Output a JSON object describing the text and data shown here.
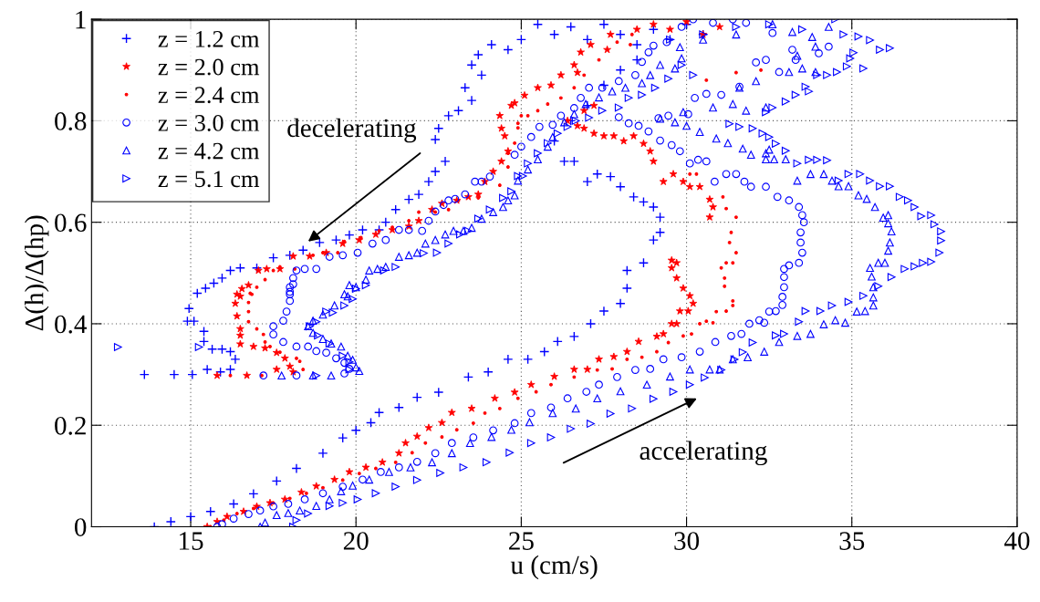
{
  "chart_data": {
    "type": "scatter",
    "xlabel": "u (cm/s)",
    "ylabel": "Δ(h)/Δ(hp)",
    "xlim": [
      12,
      40
    ],
    "ylim": [
      0,
      1
    ],
    "xticks": [
      15,
      20,
      25,
      30,
      35,
      40
    ],
    "yticks": [
      0,
      0.2,
      0.4,
      0.6,
      0.8,
      1
    ],
    "grid": true,
    "legend": "top left",
    "annotations": [
      "decelerating",
      "accelerating"
    ],
    "series": [
      {
        "name": "z = 1.2 cm",
        "color": "#0000ff",
        "marker": "plus",
        "x": [
          13.9,
          14.4,
          15.0,
          15.6,
          16.3,
          16.9,
          17.6,
          18.2,
          19.0,
          19.6,
          20.0,
          20.45,
          20.7,
          21.3,
          21.85,
          22.5,
          23.4,
          24.0,
          24.6,
          25.2,
          25.7,
          26.1,
          26.6,
          27.1,
          27.5,
          28.0,
          28.2,
          28.2,
          28.7,
          29.2,
          29.0,
          29.2,
          29.0,
          28.7,
          28.4,
          28.0,
          27.7,
          27.3,
          27.0,
          26.3,
          26.6,
          26.0,
          26.5,
          27.0,
          27.5,
          28.0,
          28.5,
          26.0,
          26.5,
          27.0,
          27.5,
          28.0,
          28.5,
          29.0,
          29.5,
          30.0,
          30.5,
          25.5,
          25.0,
          24.6,
          24.1,
          23.7,
          23.5,
          23.8,
          23.3,
          23.5,
          23.1,
          22.8,
          22.5,
          22.4,
          22.7,
          22.4,
          22.2,
          21.9,
          21.6,
          21.2,
          20.9,
          20.7,
          20.2,
          19.8,
          19.4,
          18.9,
          18.4,
          18.0,
          17.5,
          17.0,
          16.5,
          16.2,
          15.95,
          15.7,
          15.45,
          15.2,
          14.95,
          14.9,
          15.1,
          15.4,
          15.4,
          15.65,
          15.95,
          16.2,
          16.35,
          16.2,
          15.9,
          15.5,
          15.05,
          14.5,
          13.6
        ],
        "values": [
          0,
          0.01,
          0.02,
          0.03,
          0.045,
          0.065,
          0.09,
          0.115,
          0.145,
          0.175,
          0.19,
          0.205,
          0.225,
          0.235,
          0.255,
          0.265,
          0.295,
          0.305,
          0.33,
          0.33,
          0.345,
          0.365,
          0.375,
          0.4,
          0.425,
          0.44,
          0.47,
          0.505,
          0.52,
          0.61,
          0.565,
          0.58,
          0.63,
          0.64,
          0.65,
          0.67,
          0.69,
          0.695,
          0.68,
          0.72,
          0.72,
          0.76,
          0.8,
          0.83,
          0.87,
          0.9,
          0.92,
          0.97,
          0.985,
          0.96,
          0.99,
          0.97,
          0.95,
          0.98,
          0.96,
          0.99,
          0.97,
          0.99,
          0.96,
          0.94,
          0.95,
          0.93,
          0.91,
          0.89,
          0.865,
          0.84,
          0.82,
          0.81,
          0.785,
          0.763,
          0.72,
          0.7,
          0.68,
          0.655,
          0.645,
          0.625,
          0.6,
          0.585,
          0.585,
          0.575,
          0.565,
          0.56,
          0.545,
          0.535,
          0.53,
          0.51,
          0.51,
          0.505,
          0.49,
          0.48,
          0.47,
          0.46,
          0.43,
          0.405,
          0.405,
          0.385,
          0.365,
          0.35,
          0.35,
          0.345,
          0.33,
          0.31,
          0.305,
          0.31,
          0.3,
          0.3,
          0.3
        ]
      },
      {
        "name": "z = 2.0 cm",
        "color": "#ff0000",
        "marker": "star",
        "x": [
          15.5,
          15.8,
          16.1,
          16.6,
          17.0,
          17.4,
          17.85,
          18.35,
          18.8,
          19.35,
          19.8,
          20.3,
          20.8,
          21.3,
          21.5,
          21.85,
          22.2,
          22.6,
          22.9,
          23.5,
          24.2,
          24.8,
          25.3,
          26.0,
          26.6,
          27.0,
          27.35,
          27.8,
          28.2,
          28.55,
          29.1,
          29.3,
          29.55,
          29.7,
          29.8,
          30.05,
          30.2,
          30.1,
          29.9,
          29.7,
          29.55,
          29.7,
          29.55,
          30.7,
          30.8,
          30.7,
          30.4,
          30.1,
          29.9,
          29.6,
          29.3,
          29.0,
          28.9,
          28.7,
          28.4,
          28.1,
          27.8,
          27.5,
          27.2,
          26.9,
          26.7,
          26.4,
          26.9,
          27.2,
          29.0,
          29.5,
          30.0,
          30.5,
          31.0,
          28.5,
          27.7,
          27.6,
          27.1,
          26.8,
          26.6,
          26.7,
          26.2,
          25.9,
          25.5,
          25.1,
          24.8,
          24.7,
          24.35,
          24.4,
          24.5,
          24.6,
          24.4,
          24.15,
          23.9,
          23.7,
          23.4,
          23.05,
          22.6,
          22.3,
          21.9,
          21.6,
          21.1,
          20.6,
          20.1,
          19.6,
          19.1,
          18.6,
          18.1,
          17.7,
          17.3,
          17.05,
          16.75,
          16.55,
          16.5,
          16.4,
          16.35,
          16.4,
          16.5,
          16.5,
          16.5,
          16.9,
          17.25,
          17.6,
          17.85,
          18.0,
          18.1,
          17.6,
          16.7,
          15.8
        ],
        "values": [
          0,
          0.01,
          0.02,
          0.03,
          0.04,
          0.047,
          0.054,
          0.068,
          0.08,
          0.093,
          0.108,
          0.117,
          0.127,
          0.145,
          0.165,
          0.178,
          0.195,
          0.205,
          0.225,
          0.233,
          0.253,
          0.265,
          0.28,
          0.296,
          0.31,
          0.31,
          0.33,
          0.335,
          0.345,
          0.365,
          0.375,
          0.38,
          0.4,
          0.4,
          0.425,
          0.425,
          0.44,
          0.455,
          0.47,
          0.49,
          0.51,
          0.52,
          0.525,
          0.61,
          0.63,
          0.645,
          0.67,
          0.67,
          0.68,
          0.695,
          0.68,
          0.72,
          0.74,
          0.755,
          0.77,
          0.76,
          0.77,
          0.77,
          0.775,
          0.785,
          0.79,
          0.8,
          0.82,
          0.83,
          0.99,
          0.98,
          0.995,
          0.97,
          0.985,
          0.98,
          0.97,
          0.94,
          0.95,
          0.935,
          0.91,
          0.895,
          0.89,
          0.87,
          0.865,
          0.85,
          0.835,
          0.83,
          0.81,
          0.785,
          0.77,
          0.74,
          0.72,
          0.7,
          0.68,
          0.655,
          0.65,
          0.643,
          0.637,
          0.625,
          0.603,
          0.592,
          0.585,
          0.576,
          0.565,
          0.558,
          0.54,
          0.533,
          0.533,
          0.508,
          0.508,
          0.505,
          0.476,
          0.469,
          0.454,
          0.458,
          0.44,
          0.415,
          0.39,
          0.377,
          0.36,
          0.355,
          0.352,
          0.343,
          0.332,
          0.316,
          0.305,
          0.31,
          0.298,
          0.298
        ]
      },
      {
        "name": "z = 2.4 cm",
        "color": "#ff0000",
        "marker": "point",
        "x": [
          15.6,
          16.0,
          16.4,
          16.9,
          17.5,
          18.0,
          18.5,
          19.0,
          19.6,
          20.1,
          20.6,
          21.2,
          21.7,
          22.1,
          22.6,
          23.05,
          23.55,
          23.9,
          24.35,
          24.9,
          25.45,
          25.9,
          26.6,
          27.3,
          27.75,
          28.2,
          28.65,
          29.1,
          29.45,
          29.9,
          30.15,
          30.4,
          30.6,
          30.8,
          30.9,
          31.2,
          31.4,
          31.4,
          31.15,
          31.15,
          31.05,
          31.2,
          31.4,
          31.5,
          31.3,
          31.35,
          31.5,
          31.2,
          31.1,
          30.3,
          30.1,
          31.5,
          32.25,
          30.6,
          28.3,
          28.35,
          27.9,
          27.35,
          26.9,
          26.6,
          26.2,
          25.8,
          25.5,
          25.2,
          24.9,
          25.0,
          24.9,
          24.8,
          24.6,
          24.6,
          24.35,
          23.7,
          23.1,
          22.8,
          22.4,
          21.9,
          21.6,
          21.1,
          20.7,
          20.15,
          19.65,
          19.45,
          19.0,
          18.7,
          18.15,
          17.7,
          17.5,
          17.25,
          17.0,
          16.85,
          16.8,
          16.75,
          16.75,
          16.75,
          17.0,
          17.2,
          17.25,
          17.4,
          17.7,
          18.2,
          18.3,
          18.4,
          17.15,
          16.2
        ],
        "values": [
          0,
          0.013,
          0.026,
          0.036,
          0.047,
          0.056,
          0.066,
          0.077,
          0.092,
          0.105,
          0.115,
          0.127,
          0.146,
          0.165,
          0.177,
          0.191,
          0.204,
          0.224,
          0.233,
          0.253,
          0.266,
          0.28,
          0.295,
          0.309,
          0.311,
          0.33,
          0.334,
          0.345,
          0.363,
          0.376,
          0.38,
          0.4,
          0.405,
          0.402,
          0.424,
          0.425,
          0.436,
          0.445,
          0.474,
          0.49,
          0.51,
          0.52,
          0.52,
          0.54,
          0.56,
          0.58,
          0.61,
          0.627,
          0.65,
          0.695,
          0.695,
          0.895,
          0.9,
          0.88,
          0.95,
          0.97,
          0.955,
          0.92,
          0.89,
          0.865,
          0.845,
          0.833,
          0.82,
          0.81,
          0.795,
          0.81,
          0.786,
          0.756,
          0.736,
          0.709,
          0.673,
          0.648,
          0.643,
          0.625,
          0.62,
          0.62,
          0.603,
          0.59,
          0.583,
          0.57,
          0.562,
          0.54,
          0.54,
          0.535,
          0.508,
          0.512,
          0.505,
          0.487,
          0.472,
          0.458,
          0.46,
          0.442,
          0.424,
          0.404,
          0.39,
          0.379,
          0.364,
          0.355,
          0.344,
          0.332,
          0.326,
          0.31,
          0.298,
          0.298
        ]
      },
      {
        "name": "z = 3.0 cm",
        "color": "#0000ff",
        "marker": "circle",
        "x": [
          15.8,
          15.95,
          16.3,
          16.75,
          17.1,
          17.5,
          17.95,
          18.45,
          19.0,
          19.6,
          20.2,
          20.75,
          21.3,
          21.85,
          22.4,
          22.9,
          23.55,
          24.15,
          24.8,
          25.3,
          25.9,
          26.4,
          26.97,
          27.35,
          27.9,
          28.45,
          28.9,
          29.3,
          29.85,
          30.4,
          30.87,
          31.35,
          31.66,
          31.9,
          32.2,
          32.35,
          32.5,
          32.7,
          32.9,
          32.9,
          32.95,
          32.95,
          32.95,
          33.1,
          33.4,
          33.5,
          33.45,
          33.45,
          33.55,
          33.5,
          33.4,
          33.1,
          32.75,
          32.4,
          31.95,
          31.75,
          31.5,
          31.2,
          30.85,
          30.6,
          30.35,
          30.1,
          29.8,
          29.55,
          29.2,
          28.85,
          28.55,
          28.25,
          27.95,
          29.15,
          29.45,
          30.05,
          30.25,
          30.6,
          31.05,
          31.6,
          32.1,
          32.4,
          32.8,
          33.3,
          34.0,
          34.3,
          29.85,
          30.2,
          30.8,
          31.4,
          31.8,
          32.6,
          33.2,
          29.4,
          29.0,
          28.85,
          28.65,
          28.45,
          27.95,
          27.45,
          27.05,
          26.8,
          26.6,
          26.2,
          25.95,
          25.55,
          25.3,
          25.0,
          24.8,
          24.05,
          23.8,
          23.6,
          23.3,
          23.0,
          22.8,
          22.65,
          22.4,
          22.2,
          22.0,
          21.6,
          21.3,
          20.9,
          20.5,
          20.05,
          19.6,
          19.2,
          18.8,
          18.45,
          18.2,
          18.1,
          18.0,
          18.0,
          18.1,
          18.0,
          18.0,
          17.9,
          17.8,
          17.5,
          17.5,
          17.8,
          18.2,
          18.55,
          18.8,
          19.1,
          19.4,
          19.65,
          19.8,
          19.65,
          18.2,
          17.2
        ],
        "values": [
          0,
          0.005,
          0.016,
          0.025,
          0.032,
          0.04,
          0.045,
          0.054,
          0.066,
          0.079,
          0.093,
          0.108,
          0.117,
          0.128,
          0.145,
          0.165,
          0.176,
          0.19,
          0.204,
          0.224,
          0.235,
          0.253,
          0.266,
          0.28,
          0.295,
          0.309,
          0.311,
          0.33,
          0.334,
          0.345,
          0.364,
          0.376,
          0.38,
          0.4,
          0.407,
          0.402,
          0.424,
          0.425,
          0.437,
          0.453,
          0.472,
          0.492,
          0.508,
          0.515,
          0.52,
          0.54,
          0.56,
          0.58,
          0.6,
          0.614,
          0.63,
          0.643,
          0.65,
          0.67,
          0.67,
          0.68,
          0.695,
          0.695,
          0.68,
          0.72,
          0.723,
          0.716,
          0.74,
          0.752,
          0.761,
          0.779,
          0.79,
          0.795,
          0.807,
          0.805,
          0.81,
          0.813,
          0.845,
          0.853,
          0.851,
          0.867,
          0.915,
          0.92,
          0.896,
          0.92,
          0.933,
          0.946,
          0.985,
          1.0,
          0.993,
          1.0,
          0.993,
          0.973,
          0.94,
          0.955,
          0.948,
          0.935,
          0.916,
          0.89,
          0.878,
          0.865,
          0.865,
          0.845,
          0.825,
          0.81,
          0.792,
          0.788,
          0.768,
          0.749,
          0.733,
          0.69,
          0.68,
          0.68,
          0.655,
          0.646,
          0.643,
          0.634,
          0.621,
          0.603,
          0.583,
          0.585,
          0.585,
          0.565,
          0.558,
          0.54,
          0.535,
          0.532,
          0.508,
          0.508,
          0.505,
          0.49,
          0.472,
          0.458,
          0.478,
          0.463,
          0.445,
          0.424,
          0.406,
          0.395,
          0.379,
          0.364,
          0.355,
          0.355,
          0.346,
          0.343,
          0.332,
          0.323,
          0.311,
          0.302,
          0.298,
          0.298
        ]
      },
      {
        "name": "z = 4.2 cm",
        "color": "#0000ff",
        "marker": "triangle",
        "x": [
          17.1,
          17.25,
          17.6,
          17.95,
          18.3,
          18.8,
          19.2,
          19.55,
          19.9,
          20.4,
          21.0,
          21.65,
          22.3,
          22.9,
          23.45,
          24.1,
          24.7,
          25.25,
          25.95,
          26.65,
          27.3,
          28.0,
          28.8,
          29.5,
          30.1,
          30.7,
          31.0,
          31.4,
          31.85,
          32.35,
          32.8,
          33.35,
          33.75,
          34.15,
          34.5,
          34.8,
          35.15,
          35.4,
          35.65,
          35.65,
          35.65,
          35.6,
          35.55,
          35.8,
          36.0,
          36.1,
          36.15,
          36.2,
          36.1,
          36.1,
          35.95,
          35.7,
          35.45,
          35.2,
          34.9,
          34.6,
          34.4,
          34.15,
          33.75,
          33.35,
          33.0,
          32.65,
          32.4,
          32.4,
          32.5,
          31.95,
          31.7,
          31.25,
          30.9,
          30.4,
          30.0,
          29.65,
          29.2,
          29.9,
          30.8,
          31.4,
          31.8,
          32.4,
          31.6,
          32.1,
          33.1,
          33.5,
          33.9,
          33.35,
          33.9,
          32.6,
          33.2,
          33.8,
          34.3,
          31.5,
          30.5,
          29.8,
          29.85,
          29.65,
          29.2,
          28.9,
          28.65,
          28.15,
          27.75,
          27.35,
          26.95,
          26.6,
          26.3,
          25.95,
          25.8,
          25.5,
          25.2,
          24.9,
          24.8,
          24.6,
          24.45,
          24.15,
          23.8,
          23.5,
          23.25,
          22.95,
          22.7,
          22.4,
          22.1,
          21.85,
          21.6,
          21.3,
          20.9,
          20.65,
          20.4,
          20.3,
          20.0,
          19.75,
          19.8,
          19.65,
          19.35,
          19.0,
          18.7,
          18.55,
          18.7,
          19.0,
          19.25,
          19.55,
          19.75,
          19.9,
          20.0,
          20.1,
          19.25,
          18.7,
          17.75
        ],
        "values": [
          0,
          0.008,
          0.023,
          0.027,
          0.032,
          0.041,
          0.054,
          0.07,
          0.081,
          0.093,
          0.108,
          0.117,
          0.127,
          0.145,
          0.165,
          0.177,
          0.191,
          0.206,
          0.224,
          0.233,
          0.253,
          0.267,
          0.28,
          0.296,
          0.31,
          0.31,
          0.31,
          0.33,
          0.334,
          0.345,
          0.364,
          0.376,
          0.38,
          0.399,
          0.407,
          0.402,
          0.424,
          0.425,
          0.436,
          0.452,
          0.472,
          0.493,
          0.51,
          0.52,
          0.52,
          0.544,
          0.56,
          0.582,
          0.598,
          0.614,
          0.609,
          0.63,
          0.646,
          0.653,
          0.671,
          0.671,
          0.682,
          0.695,
          0.695,
          0.682,
          0.724,
          0.724,
          0.724,
          0.736,
          0.743,
          0.733,
          0.745,
          0.756,
          0.765,
          0.778,
          0.79,
          0.797,
          0.804,
          0.817,
          0.826,
          0.833,
          0.82,
          0.826,
          0.865,
          0.878,
          0.896,
          0.903,
          0.896,
          0.928,
          0.946,
          0.99,
          0.975,
          0.965,
          0.985,
          0.97,
          0.96,
          0.945,
          0.923,
          0.903,
          0.91,
          0.89,
          0.874,
          0.865,
          0.858,
          0.846,
          0.833,
          0.813,
          0.797,
          0.768,
          0.749,
          0.724,
          0.704,
          0.682,
          0.653,
          0.643,
          0.63,
          0.62,
          0.607,
          0.589,
          0.583,
          0.583,
          0.576,
          0.565,
          0.558,
          0.54,
          0.535,
          0.532,
          0.512,
          0.508,
          0.505,
          0.487,
          0.472,
          0.454,
          0.476,
          0.458,
          0.436,
          0.418,
          0.406,
          0.395,
          0.382,
          0.37,
          0.361,
          0.355,
          0.337,
          0.329,
          0.314,
          0.307,
          0.298,
          0.298,
          0.298
        ]
      },
      {
        "name": "z = 5.1 cm",
        "color": "#0000ff",
        "marker": "triangle-right",
        "x": [
          18.1,
          18.2,
          18.55,
          19.2,
          19.6,
          20.05,
          20.6,
          21.2,
          21.85,
          22.55,
          23.25,
          23.95,
          24.65,
          25.3,
          25.9,
          26.5,
          27.1,
          27.7,
          28.35,
          29.0,
          29.6,
          30.1,
          30.55,
          31.05,
          31.45,
          31.7,
          32.0,
          32.7,
          32.95,
          33.4,
          33.6,
          34.05,
          34.4,
          34.9,
          35.35,
          35.8,
          36.2,
          36.6,
          36.9,
          37.15,
          37.4,
          37.65,
          37.7,
          37.7,
          37.5,
          37.4,
          37.1,
          36.9,
          36.7,
          36.45,
          36.15,
          35.85,
          35.55,
          35.25,
          34.9,
          34.6,
          34.25,
          33.95,
          33.7,
          33.35,
          33.0,
          32.7,
          32.5,
          32.3,
          32.0,
          31.6,
          31.3,
          32.6,
          32.4,
          33.0,
          33.3,
          33.6,
          33.7,
          33.95,
          34.25,
          34.55,
          34.85,
          34.95,
          35.35,
          35.05,
          35.2,
          35.55,
          35.85,
          36.15,
          34.75,
          34.5,
          33.5,
          32.5,
          31.5,
          30.5,
          29.5,
          30.2,
          29.85,
          29.45,
          29.05,
          28.65,
          28.25,
          27.95,
          27.45,
          27.05,
          26.65,
          26.4,
          26.1,
          25.8,
          25.5,
          25.2,
          24.9,
          25.05,
          24.7,
          24.45,
          24.05,
          23.7,
          23.4,
          23.15,
          22.8,
          22.45,
          22.05,
          21.2,
          20.85,
          20.3,
          20.0,
          19.9,
          19.65,
          19.3,
          19.1,
          18.8,
          18.6,
          18.85,
          19.2,
          19.6,
          19.8,
          19.8,
          18.8,
          15.25,
          12.8
        ],
        "values": [
          0,
          0.013,
          0.026,
          0.041,
          0.047,
          0.054,
          0.066,
          0.079,
          0.092,
          0.106,
          0.117,
          0.127,
          0.146,
          0.165,
          0.176,
          0.193,
          0.203,
          0.223,
          0.233,
          0.252,
          0.266,
          0.28,
          0.294,
          0.309,
          0.33,
          0.344,
          0.363,
          0.377,
          0.38,
          0.404,
          0.425,
          0.425,
          0.436,
          0.443,
          0.455,
          0.474,
          0.492,
          0.508,
          0.513,
          0.52,
          0.522,
          0.54,
          0.564,
          0.582,
          0.596,
          0.614,
          0.612,
          0.63,
          0.643,
          0.65,
          0.671,
          0.671,
          0.682,
          0.695,
          0.695,
          0.682,
          0.722,
          0.723,
          0.723,
          0.716,
          0.741,
          0.755,
          0.768,
          0.775,
          0.785,
          0.788,
          0.794,
          0.826,
          0.817,
          0.838,
          0.851,
          0.867,
          0.858,
          0.89,
          0.89,
          0.896,
          0.907,
          0.923,
          0.903,
          0.934,
          0.966,
          0.959,
          0.94,
          0.943,
          0.97,
          1.0,
          0.98,
          0.99,
          0.985,
          0.97,
          0.96,
          0.89,
          0.91,
          0.883,
          0.865,
          0.851,
          0.845,
          0.826,
          0.82,
          0.806,
          0.8,
          0.788,
          0.775,
          0.756,
          0.736,
          0.716,
          0.691,
          0.691,
          0.661,
          0.648,
          0.625,
          0.607,
          0.583,
          0.576,
          0.558,
          0.54,
          0.539,
          0.512,
          0.505,
          0.476,
          0.469,
          0.449,
          0.436,
          0.422,
          0.424,
          0.404,
          0.395,
          0.377,
          0.361,
          0.337,
          0.325,
          0.31,
          0.298,
          0.354,
          0.354
        ]
      }
    ]
  }
}
